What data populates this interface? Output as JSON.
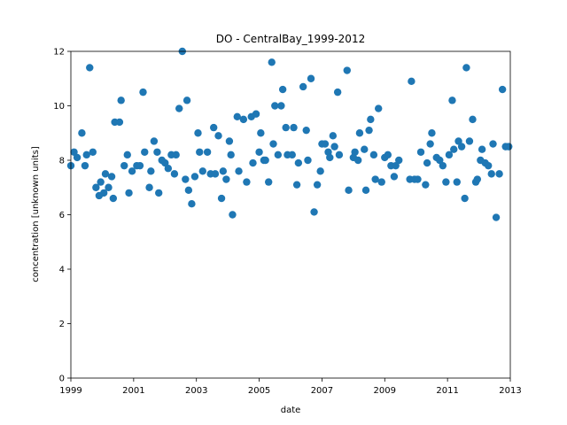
{
  "chart_data": {
    "type": "scatter",
    "title": "DO - CentralBay_1999-2012",
    "xlabel": "date",
    "ylabel": "concentration [unknown units]",
    "color": "#1f77b4",
    "xlim": [
      1999,
      2013
    ],
    "xticks": [
      1999,
      2001,
      2003,
      2005,
      2007,
      2009,
      2011,
      2013
    ],
    "ylim": [
      0,
      12
    ],
    "yticks": [
      0,
      2,
      4,
      6,
      8,
      10,
      12
    ],
    "x": [
      1999.0,
      1999.1,
      1999.2,
      1999.35,
      1999.45,
      1999.5,
      1999.6,
      1999.7,
      1999.8,
      1999.9,
      1999.95,
      2000.05,
      2000.1,
      2000.2,
      2000.3,
      2000.35,
      2000.4,
      2000.55,
      2000.6,
      2000.7,
      2000.8,
      2000.85,
      2000.95,
      2001.1,
      2001.2,
      2001.3,
      2001.35,
      2001.5,
      2001.55,
      2001.65,
      2001.75,
      2001.8,
      2001.9,
      2002.0,
      2002.1,
      2002.2,
      2002.3,
      2002.35,
      2002.45,
      2002.55,
      2002.65,
      2002.7,
      2002.75,
      2002.85,
      2002.95,
      2003.05,
      2003.1,
      2003.2,
      2003.35,
      2003.45,
      2003.55,
      2003.6,
      2003.7,
      2003.8,
      2003.85,
      2003.95,
      2004.05,
      2004.1,
      2004.15,
      2004.3,
      2004.35,
      2004.5,
      2004.6,
      2004.75,
      2004.8,
      2004.9,
      2005.0,
      2005.05,
      2005.15,
      2005.2,
      2005.3,
      2005.4,
      2005.45,
      2005.5,
      2005.6,
      2005.7,
      2005.75,
      2005.85,
      2005.9,
      2006.05,
      2006.1,
      2006.2,
      2006.25,
      2006.4,
      2006.5,
      2006.55,
      2006.65,
      2006.75,
      2006.85,
      2006.95,
      2007.0,
      2007.1,
      2007.2,
      2007.25,
      2007.35,
      2007.4,
      2007.5,
      2007.55,
      2007.8,
      2007.85,
      2008.0,
      2008.05,
      2008.15,
      2008.2,
      2008.35,
      2008.4,
      2008.5,
      2008.55,
      2008.65,
      2008.7,
      2008.8,
      2008.9,
      2009.0,
      2009.1,
      2009.2,
      2009.3,
      2009.35,
      2009.45,
      2009.8,
      2009.85,
      2009.95,
      2010.05,
      2010.15,
      2010.3,
      2010.35,
      2010.45,
      2010.5,
      2010.65,
      2010.75,
      2010.85,
      2010.95,
      2011.05,
      2011.15,
      2011.2,
      2011.3,
      2011.35,
      2011.45,
      2011.55,
      2011.6,
      2011.7,
      2011.8,
      2011.9,
      2011.95,
      2012.05,
      2012.1,
      2012.2,
      2012.3,
      2012.4,
      2012.45,
      2012.55,
      2012.65,
      2012.75,
      2012.85,
      2012.95
    ],
    "values": [
      7.8,
      8.3,
      8.1,
      9.0,
      7.8,
      8.2,
      11.4,
      8.3,
      7.0,
      6.7,
      7.2,
      6.8,
      7.5,
      7.0,
      7.4,
      6.6,
      9.4,
      9.4,
      10.2,
      7.8,
      8.2,
      6.8,
      7.6,
      7.8,
      7.8,
      10.5,
      8.3,
      7.0,
      7.6,
      8.7,
      8.3,
      6.8,
      8.0,
      7.9,
      7.7,
      8.2,
      7.5,
      8.2,
      9.9,
      12.0,
      7.3,
      10.2,
      6.9,
      6.4,
      7.4,
      9.0,
      8.3,
      7.6,
      8.3,
      7.5,
      9.2,
      7.5,
      8.9,
      6.6,
      7.6,
      7.3,
      8.7,
      8.2,
      6.0,
      9.6,
      7.6,
      9.5,
      7.2,
      9.6,
      7.9,
      9.7,
      8.3,
      9.0,
      8.0,
      8.0,
      7.2,
      11.6,
      8.6,
      10.0,
      8.2,
      10.0,
      10.6,
      9.2,
      8.2,
      8.2,
      9.2,
      7.1,
      7.9,
      10.7,
      9.1,
      8.0,
      11.0,
      6.1,
      7.1,
      7.6,
      8.6,
      8.6,
      8.3,
      8.1,
      8.9,
      8.5,
      10.5,
      8.2,
      11.3,
      6.9,
      8.1,
      8.3,
      8.0,
      9.0,
      8.4,
      6.9,
      9.1,
      9.5,
      8.2,
      7.3,
      9.9,
      7.2,
      8.1,
      8.2,
      7.8,
      7.4,
      7.8,
      8.0,
      7.3,
      10.9,
      7.3,
      7.3,
      8.3,
      7.1,
      7.9,
      8.6,
      9.0,
      8.1,
      8.0,
      7.8,
      7.2,
      8.2,
      10.2,
      8.4,
      7.2,
      8.7,
      8.5,
      6.6,
      11.4,
      8.7,
      9.5,
      7.2,
      7.3,
      8.0,
      8.4,
      7.9,
      7.8,
      7.5,
      8.6,
      5.9,
      7.5,
      10.6,
      8.5,
      8.5
    ]
  }
}
